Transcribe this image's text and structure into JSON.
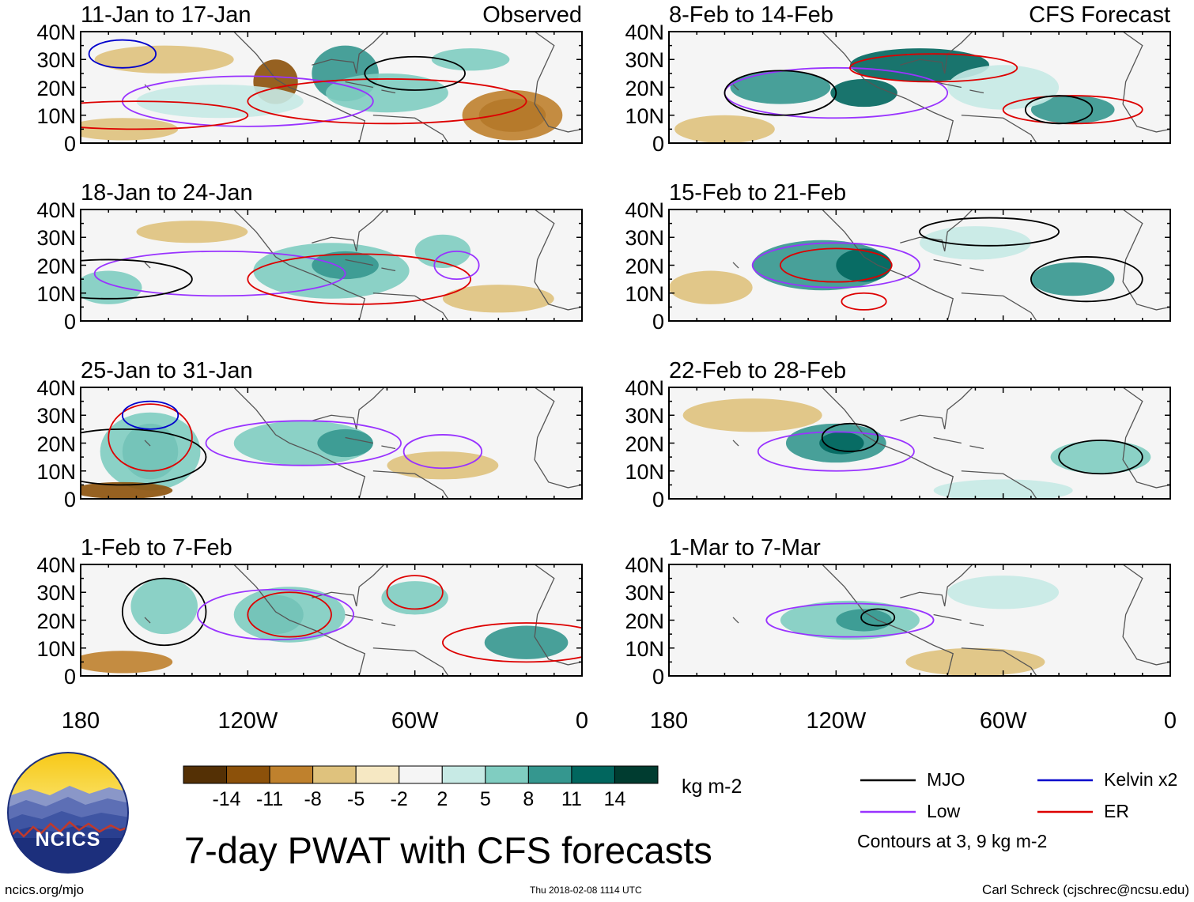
{
  "title": "7-day PWAT with CFS forecasts",
  "observed_label": "Observed",
  "forecast_label": "CFS Forecast",
  "footer": {
    "left": "ncics.org/mjo",
    "center": "Thu 2018-02-08 1114 UTC",
    "right": "Carl Schreck (cjschrec@ncsu.edu)"
  },
  "logo": {
    "text": "NCICS"
  },
  "colorbar": {
    "unit": "kg m-2",
    "ticks": [
      "-14",
      "-11",
      "-8",
      "-5",
      "-2",
      "2",
      "5",
      "8",
      "11",
      "14"
    ],
    "colors": [
      "#543005",
      "#8c510a",
      "#bf812d",
      "#dfc27d",
      "#f6e8c3",
      "#f5f5f5",
      "#c7eae5",
      "#80cdc1",
      "#35978f",
      "#01665e",
      "#003c30"
    ]
  },
  "legend": {
    "items": [
      {
        "label": "MJO",
        "color": "#000000"
      },
      {
        "label": "Kelvin x2",
        "color": "#0000cc"
      },
      {
        "label": "Low",
        "color": "#9933ff"
      },
      {
        "label": "ER",
        "color": "#dd0000"
      }
    ],
    "note": "Contours at 3, 9 kg m-2"
  },
  "chart_data": [
    {
      "type": "heatmap",
      "title": "11-Jan to 17-Jan",
      "source": "Observed",
      "ylim": [
        0,
        40
      ],
      "yticks": [
        "40N",
        "30N",
        "20N",
        "10N",
        "0"
      ],
      "xlim": [
        -180,
        0
      ],
      "xticks": [
        "180",
        "120W",
        "60W",
        "0"
      ],
      "unit": "kg m-2"
    },
    {
      "type": "heatmap",
      "title": "18-Jan to 24-Jan",
      "source": "Observed",
      "ylim": [
        0,
        40
      ],
      "yticks": [
        "40N",
        "30N",
        "20N",
        "10N",
        "0"
      ],
      "xlim": [
        -180,
        0
      ],
      "xticks": [
        "180",
        "120W",
        "60W",
        "0"
      ],
      "unit": "kg m-2"
    },
    {
      "type": "heatmap",
      "title": "25-Jan to 31-Jan",
      "source": "Observed",
      "ylim": [
        0,
        40
      ],
      "yticks": [
        "40N",
        "30N",
        "20N",
        "10N",
        "0"
      ],
      "xlim": [
        -180,
        0
      ],
      "xticks": [
        "180",
        "120W",
        "60W",
        "0"
      ],
      "unit": "kg m-2"
    },
    {
      "type": "heatmap",
      "title": "1-Feb to 7-Feb",
      "source": "Observed",
      "ylim": [
        0,
        40
      ],
      "yticks": [
        "40N",
        "30N",
        "20N",
        "10N",
        "0"
      ],
      "xlim": [
        -180,
        0
      ],
      "xticks": [
        "180",
        "120W",
        "60W",
        "0"
      ],
      "unit": "kg m-2"
    },
    {
      "type": "heatmap",
      "title": "8-Feb to 14-Feb",
      "source": "CFS Forecast",
      "ylim": [
        0,
        40
      ],
      "yticks": [
        "40N",
        "30N",
        "20N",
        "10N",
        "0"
      ],
      "xlim": [
        -180,
        0
      ],
      "xticks": [
        "180",
        "120W",
        "60W",
        "0"
      ],
      "unit": "kg m-2"
    },
    {
      "type": "heatmap",
      "title": "15-Feb to 21-Feb",
      "source": "CFS Forecast",
      "ylim": [
        0,
        40
      ],
      "yticks": [
        "40N",
        "30N",
        "20N",
        "10N",
        "0"
      ],
      "xlim": [
        -180,
        0
      ],
      "xticks": [
        "180",
        "120W",
        "60W",
        "0"
      ],
      "unit": "kg m-2"
    },
    {
      "type": "heatmap",
      "title": "22-Feb to 28-Feb",
      "source": "CFS Forecast",
      "ylim": [
        0,
        40
      ],
      "yticks": [
        "40N",
        "30N",
        "20N",
        "10N",
        "0"
      ],
      "xlim": [
        -180,
        0
      ],
      "xticks": [
        "180",
        "120W",
        "60W",
        "0"
      ],
      "unit": "kg m-2"
    },
    {
      "type": "heatmap",
      "title": "1-Mar to 7-Mar",
      "source": "CFS Forecast",
      "ylim": [
        0,
        40
      ],
      "yticks": [
        "40N",
        "30N",
        "20N",
        "10N",
        "0"
      ],
      "xlim": [
        -180,
        0
      ],
      "xticks": [
        "180",
        "120W",
        "60W",
        "0"
      ],
      "unit": "kg m-2"
    }
  ]
}
